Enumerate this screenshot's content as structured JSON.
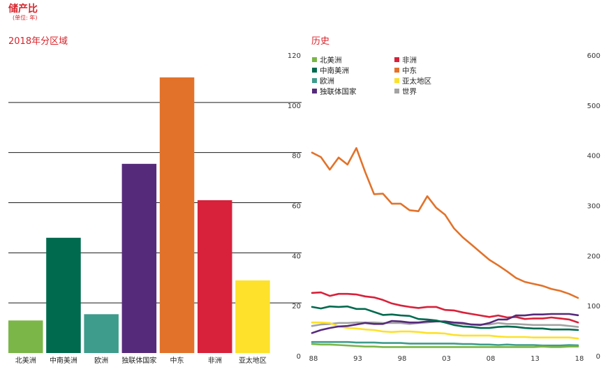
{
  "header": {
    "title": "储产比",
    "subtitle": "(单位: 年)"
  },
  "chart_data": [
    {
      "type": "bar",
      "title": "2018年分区域",
      "categories": [
        "北美洲",
        "中南美洲",
        "欧洲",
        "独联体国家",
        "中东",
        "非洲",
        "亚太地区"
      ],
      "values": [
        13,
        46,
        15.5,
        75.5,
        110,
        61,
        29
      ],
      "colors": [
        "#7ab648",
        "#006a4e",
        "#3e9c8c",
        "#562a7b",
        "#e2722a",
        "#d8213a",
        "#fde12a"
      ],
      "ylim": [
        0,
        120
      ],
      "yticks": [
        0,
        20,
        40,
        60,
        80,
        100,
        120
      ],
      "y_axis_side": "right",
      "grid": true
    },
    {
      "type": "line",
      "title": "历史",
      "x": [
        1988,
        1989,
        1990,
        1991,
        1992,
        1993,
        1994,
        1995,
        1996,
        1997,
        1998,
        1999,
        2000,
        2001,
        2002,
        2003,
        2004,
        2005,
        2006,
        2007,
        2008,
        2009,
        2010,
        2011,
        2012,
        2013,
        2014,
        2015,
        2016,
        2017,
        2018
      ],
      "xticks": [
        1988,
        1993,
        1998,
        2003,
        2008,
        2013,
        2018
      ],
      "xtick_labels": [
        "88",
        "93",
        "98",
        "03",
        "08",
        "13",
        "18"
      ],
      "ylim": [
        0,
        600
      ],
      "yticks": [
        0,
        100,
        200,
        300,
        400,
        500,
        600
      ],
      "y_axis_side": "right",
      "grid": false,
      "legend_position": "top-left",
      "series": [
        {
          "name": "北美洲",
          "color": "#7ab648",
          "values": [
            18,
            17,
            17,
            16,
            15,
            14,
            13,
            13,
            12,
            12,
            12,
            12,
            12,
            12,
            12,
            12,
            12,
            12,
            12,
            12,
            12,
            12,
            12,
            12,
            12,
            12,
            13,
            12,
            12,
            13,
            13
          ]
        },
        {
          "name": "中南美洲",
          "color": "#006a4e",
          "values": [
            92,
            89,
            93,
            92,
            93,
            88,
            88,
            82,
            76,
            77,
            75,
            74,
            68,
            67,
            65,
            61,
            56,
            53,
            52,
            50,
            50,
            52,
            53,
            52,
            50,
            49,
            49,
            47,
            47,
            47,
            46
          ]
        },
        {
          "name": "欧洲",
          "color": "#3e9c8c",
          "values": [
            22,
            22,
            22,
            22,
            22,
            21,
            21,
            21,
            20,
            20,
            20,
            19,
            19,
            19,
            19,
            19,
            19,
            18,
            18,
            17,
            17,
            16,
            17,
            16,
            16,
            16,
            15,
            15,
            15,
            16,
            15.5
          ]
        },
        {
          "name": "独联体国家",
          "color": "#562a7b",
          "values": [
            40,
            46,
            50,
            53,
            54,
            57,
            60,
            58,
            58,
            64,
            63,
            61,
            61,
            63,
            63,
            63,
            61,
            60,
            57,
            56,
            60,
            67,
            67,
            75,
            75,
            77,
            77,
            78,
            78,
            78,
            75.5
          ]
        },
        {
          "name": "非洲",
          "color": "#d8213a",
          "values": [
            120,
            121,
            114,
            118,
            118,
            117,
            113,
            111,
            106,
            99,
            95,
            92,
            90,
            92,
            92,
            86,
            85,
            81,
            78,
            75,
            72,
            75,
            71,
            72,
            68,
            69,
            69,
            71,
            69,
            67,
            61
          ]
        },
        {
          "name": "中东",
          "color": "#e2722a",
          "values": [
            400,
            391,
            366,
            390,
            376,
            409,
            361,
            317,
            318,
            298,
            298,
            285,
            283,
            313,
            290,
            276,
            249,
            231,
            216,
            201,
            186,
            175,
            163,
            150,
            142,
            138,
            134,
            128,
            124,
            118,
            110
          ]
        },
        {
          "name": "亚太地区",
          "color": "#fde12a",
          "values": [
            61,
            61,
            60,
            53,
            50,
            49,
            47,
            46,
            43,
            42,
            43,
            43,
            42,
            40,
            40,
            39,
            36,
            35,
            35,
            35,
            35,
            33,
            32,
            32,
            32,
            31,
            31,
            31,
            31,
            31,
            29
          ]
        },
        {
          "name": "世界",
          "color": "#a3a3a3",
          "values": [
            54,
            57,
            58,
            60,
            60,
            61,
            61,
            61,
            60,
            60,
            60,
            58,
            60,
            61,
            63,
            63,
            60,
            58,
            57,
            57,
            57,
            60,
            58,
            58,
            57,
            56,
            56,
            56,
            56,
            54,
            52
          ]
        }
      ]
    }
  ]
}
